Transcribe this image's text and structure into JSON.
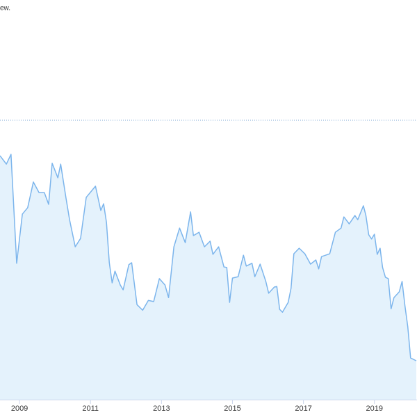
{
  "chart_data": {
    "type": "area",
    "subtitle": "ew.",
    "x": [
      2008.45,
      2008.63,
      2008.76,
      2008.92,
      2009.08,
      2009.23,
      2009.39,
      2009.55,
      2009.7,
      2009.82,
      2009.92,
      2010.08,
      2010.16,
      2010.31,
      2010.41,
      2010.57,
      2010.72,
      2010.88,
      2011.14,
      2011.29,
      2011.37,
      2011.45,
      2011.53,
      2011.61,
      2011.69,
      2011.84,
      2011.92,
      2012.08,
      2012.16,
      2012.31,
      2012.47,
      2012.63,
      2012.78,
      2012.94,
      2013.1,
      2013.2,
      2013.35,
      2013.51,
      2013.67,
      2013.82,
      2013.9,
      2014.06,
      2014.21,
      2014.37,
      2014.45,
      2014.61,
      2014.76,
      2014.84,
      2014.92,
      2015.0,
      2015.16,
      2015.31,
      2015.39,
      2015.55,
      2015.63,
      2015.78,
      2015.94,
      2016.02,
      2016.18,
      2016.25,
      2016.33,
      2016.41,
      2016.57,
      2016.65,
      2016.73,
      2016.88,
      2017.04,
      2017.2,
      2017.35,
      2017.43,
      2017.51,
      2017.74,
      2017.9,
      2018.06,
      2018.14,
      2018.29,
      2018.45,
      2018.53,
      2018.69,
      2018.76,
      2018.84,
      2018.92,
      2019.0,
      2019.08,
      2019.16,
      2019.23,
      2019.31,
      2019.39,
      2019.47,
      2019.55,
      2019.7,
      2019.78,
      2019.86,
      2019.94,
      2020.02,
      2020.18
    ],
    "series": [
      {
        "color": "#7cb5ec",
        "fill": "#e4f2fc",
        "values": [
          87.3,
          84.3,
          87.8,
          48.8,
          66.4,
          68.7,
          77.9,
          74.1,
          74.1,
          69.9,
          84.6,
          79.4,
          84.3,
          72.1,
          64.4,
          54.7,
          57.7,
          72.4,
          76.4,
          67.7,
          70.1,
          63.4,
          49.0,
          41.8,
          46.0,
          41.0,
          39.3,
          48.3,
          49.0,
          34.0,
          32.0,
          35.5,
          35.1,
          43.3,
          41.0,
          36.5,
          54.7,
          61.4,
          56.2,
          67.2,
          58.7,
          59.9,
          54.7,
          56.7,
          52.0,
          54.7,
          47.5,
          47.3,
          34.8,
          43.5,
          44.0,
          51.7,
          47.8,
          48.8,
          44.0,
          48.5,
          42.3,
          38.1,
          40.3,
          40.5,
          32.3,
          31.3,
          34.8,
          39.8,
          52.2,
          54.2,
          52.2,
          48.5,
          50.0,
          46.8,
          51.2,
          52.2,
          59.9,
          61.4,
          65.4,
          62.9,
          65.9,
          64.4,
          69.4,
          65.9,
          59.0,
          57.5,
          59.2,
          52.0,
          54.2,
          47.3,
          43.8,
          43.3,
          32.5,
          36.5,
          38.6,
          42.3,
          33.6,
          26.1,
          14.9,
          13.9
        ]
      }
    ],
    "xlim": [
      2008.45,
      2020.2
    ],
    "xticks": [
      2009,
      2011,
      2013,
      2015,
      2017,
      2019
    ],
    "ylim": [
      0,
      100
    ]
  }
}
